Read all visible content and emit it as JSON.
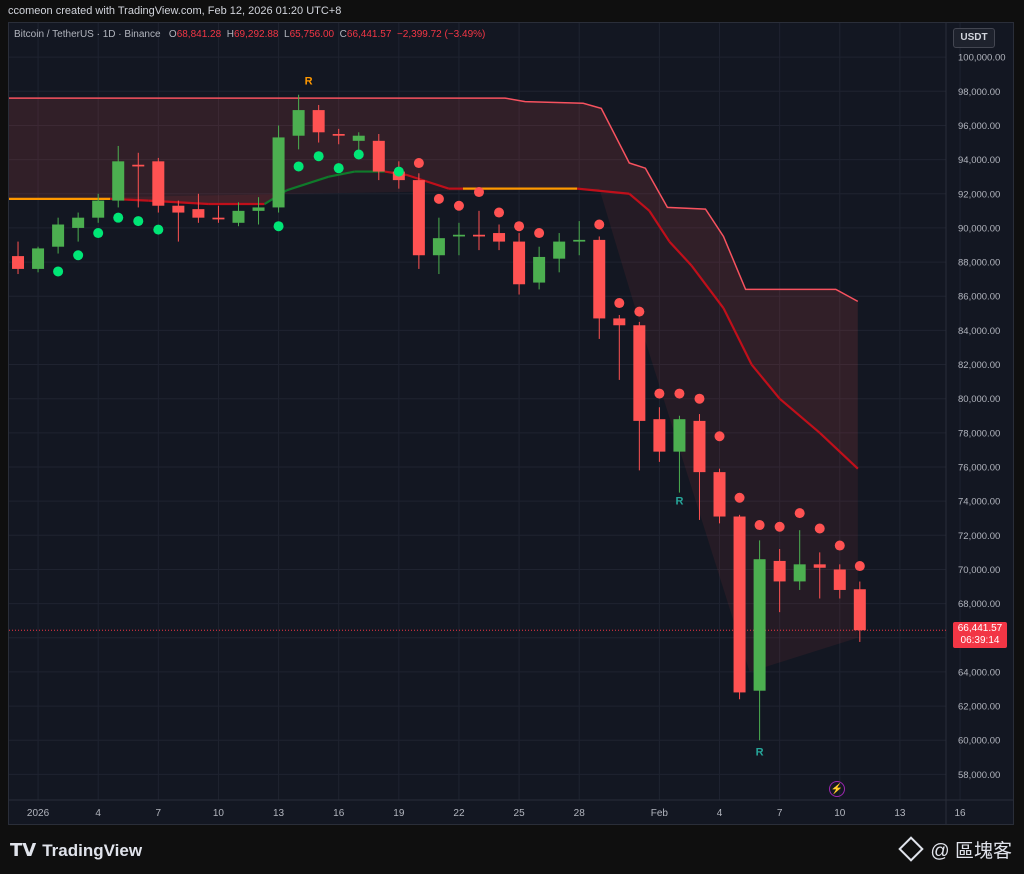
{
  "header": {
    "caption": "ccomeon created with TradingView.com, Feb 12, 2026 01:20 UTC+8"
  },
  "legend": {
    "symbol": "Bitcoin / TetherUS · 1D · Binance",
    "o_key": "O",
    "open": "68,841.28",
    "h_key": "H",
    "high": "69,292.88",
    "l_key": "L",
    "low": "65,756.00",
    "c_key": "C",
    "close": "66,441.57",
    "change": "−2,399.72 (−3.49%)"
  },
  "currency": "USDT",
  "price_tag": {
    "price": "66,441.57",
    "countdown": "06:39:14"
  },
  "footer": {
    "logo": "TradingView",
    "watermark": "@ 區塊客"
  },
  "icons": {
    "logo": "tradingview-logo-icon",
    "lightning": "lightning-icon",
    "brand": "binance-diamond-icon"
  },
  "colors": {
    "up": "#4caf50",
    "down": "#ff5252",
    "dot_up": "#00e676",
    "dot_down": "#ff5252",
    "band": "#f7525f",
    "mid_down": "#c00f1a",
    "mid_up": "#0f7a2a",
    "mid_flat": "#ff9800",
    "last_price_line": "#f23645",
    "label_r_top": "#ff9800",
    "label_r_bottom": "#26a69a"
  },
  "chart_data": {
    "type": "candlestick",
    "symbol": "Bitcoin / TetherUS",
    "interval": "1D",
    "exchange": "Binance",
    "ylim": [
      56500,
      102000
    ],
    "xlim": [
      -0.45,
      46.3
    ],
    "y_ticks": [
      58000,
      60000,
      62000,
      64000,
      66000,
      68000,
      70000,
      72000,
      74000,
      76000,
      78000,
      80000,
      82000,
      84000,
      86000,
      88000,
      90000,
      92000,
      94000,
      96000,
      98000,
      100000
    ],
    "y_tick_labels": [
      "58,000.00",
      "60,000.00",
      "62,000.00",
      "64,000.00",
      "66,000.00",
      "68,000.00",
      "70,000.00",
      "72,000.00",
      "74,000.00",
      "76,000.00",
      "78,000.00",
      "80,000.00",
      "82,000.00",
      "84,000.00",
      "86,000.00",
      "88,000.00",
      "90,000.00",
      "92,000.00",
      "94,000.00",
      "96,000.00",
      "98,000.00",
      "100,000.00"
    ],
    "x_ticks": [
      {
        "i": 1,
        "label": "2026"
      },
      {
        "i": 4,
        "label": "4"
      },
      {
        "i": 7,
        "label": "7"
      },
      {
        "i": 10,
        "label": "10"
      },
      {
        "i": 13,
        "label": "13"
      },
      {
        "i": 16,
        "label": "16"
      },
      {
        "i": 19,
        "label": "19"
      },
      {
        "i": 22,
        "label": "22"
      },
      {
        "i": 25,
        "label": "25"
      },
      {
        "i": 28,
        "label": "28"
      },
      {
        "i": 32,
        "label": "Feb"
      },
      {
        "i": 35,
        "label": "4"
      },
      {
        "i": 38,
        "label": "7"
      },
      {
        "i": 41,
        "label": "10"
      },
      {
        "i": 44,
        "label": "13"
      },
      {
        "i": 47,
        "label": "16"
      }
    ],
    "candles": [
      {
        "i": 0,
        "o": 88350,
        "h": 89200,
        "l": 87300,
        "c": 87600
      },
      {
        "i": 1,
        "o": 87600,
        "h": 88900,
        "l": 87400,
        "c": 88800
      },
      {
        "i": 2,
        "o": 88900,
        "h": 90600,
        "l": 88500,
        "c": 90200
      },
      {
        "i": 3,
        "o": 90000,
        "h": 90900,
        "l": 89200,
        "c": 90600
      },
      {
        "i": 4,
        "o": 90600,
        "h": 92000,
        "l": 90300,
        "c": 91600
      },
      {
        "i": 5,
        "o": 91600,
        "h": 94800,
        "l": 91200,
        "c": 93900
      },
      {
        "i": 6,
        "o": 93700,
        "h": 94400,
        "l": 91200,
        "c": 93600
      },
      {
        "i": 7,
        "o": 93900,
        "h": 94100,
        "l": 90900,
        "c": 91300
      },
      {
        "i": 8,
        "o": 91300,
        "h": 91600,
        "l": 89200,
        "c": 90900
      },
      {
        "i": 9,
        "o": 91100,
        "h": 92000,
        "l": 90300,
        "c": 90600
      },
      {
        "i": 10,
        "o": 90600,
        "h": 91300,
        "l": 90300,
        "c": 90500
      },
      {
        "i": 11,
        "o": 90300,
        "h": 91500,
        "l": 90100,
        "c": 91000
      },
      {
        "i": 12,
        "o": 91000,
        "h": 91800,
        "l": 90200,
        "c": 91200
      },
      {
        "i": 13,
        "o": 91200,
        "h": 96000,
        "l": 90900,
        "c": 95300
      },
      {
        "i": 14,
        "o": 95400,
        "h": 97800,
        "l": 94600,
        "c": 96900
      },
      {
        "i": 15,
        "o": 96900,
        "h": 97200,
        "l": 95000,
        "c": 95600
      },
      {
        "i": 16,
        "o": 95500,
        "h": 95800,
        "l": 94900,
        "c": 95400
      },
      {
        "i": 17,
        "o": 95100,
        "h": 95600,
        "l": 94300,
        "c": 95400
      },
      {
        "i": 18,
        "o": 95100,
        "h": 95500,
        "l": 92800,
        "c": 93300
      },
      {
        "i": 19,
        "o": 93300,
        "h": 93900,
        "l": 92300,
        "c": 92800
      },
      {
        "i": 20,
        "o": 92800,
        "h": 93200,
        "l": 87600,
        "c": 88400
      },
      {
        "i": 21,
        "o": 88400,
        "h": 90600,
        "l": 87300,
        "c": 89400
      },
      {
        "i": 22,
        "o": 89500,
        "h": 90300,
        "l": 88400,
        "c": 89600
      },
      {
        "i": 23,
        "o": 89600,
        "h": 91000,
        "l": 88700,
        "c": 89500
      },
      {
        "i": 24,
        "o": 89700,
        "h": 90200,
        "l": 88700,
        "c": 89200
      },
      {
        "i": 25,
        "o": 89200,
        "h": 89700,
        "l": 86100,
        "c": 86700
      },
      {
        "i": 26,
        "o": 86800,
        "h": 88900,
        "l": 86400,
        "c": 88300
      },
      {
        "i": 27,
        "o": 88200,
        "h": 89700,
        "l": 87400,
        "c": 89200
      },
      {
        "i": 28,
        "o": 89200,
        "h": 90400,
        "l": 88400,
        "c": 89300
      },
      {
        "i": 29,
        "o": 89300,
        "h": 89500,
        "l": 83500,
        "c": 84700
      },
      {
        "i": 30,
        "o": 84700,
        "h": 84900,
        "l": 81100,
        "c": 84300
      },
      {
        "i": 31,
        "o": 84300,
        "h": 84500,
        "l": 75800,
        "c": 78700
      },
      {
        "i": 32,
        "o": 78800,
        "h": 79500,
        "l": 76300,
        "c": 76900
      },
      {
        "i": 33,
        "o": 76900,
        "h": 79000,
        "l": 74500,
        "c": 78800
      },
      {
        "i": 34,
        "o": 78700,
        "h": 79100,
        "l": 72900,
        "c": 75700
      },
      {
        "i": 35,
        "o": 75700,
        "h": 75900,
        "l": 72700,
        "c": 73100
      },
      {
        "i": 36,
        "o": 73100,
        "h": 73200,
        "l": 62400,
        "c": 62800
      },
      {
        "i": 37,
        "o": 62900,
        "h": 71700,
        "l": 60000,
        "c": 70600
      },
      {
        "i": 38,
        "o": 70500,
        "h": 71200,
        "l": 67500,
        "c": 69300
      },
      {
        "i": 39,
        "o": 69300,
        "h": 72300,
        "l": 68800,
        "c": 70300
      },
      {
        "i": 40,
        "o": 70300,
        "h": 71000,
        "l": 68300,
        "c": 70100
      },
      {
        "i": 41,
        "o": 70000,
        "h": 70300,
        "l": 68300,
        "c": 68800
      },
      {
        "i": 42,
        "o": 68841.28,
        "h": 69292.88,
        "l": 65756,
        "c": 66441.57
      }
    ],
    "sar_dots": [
      {
        "i": 2,
        "v": 87450,
        "dir": "up"
      },
      {
        "i": 3,
        "v": 88400,
        "dir": "up"
      },
      {
        "i": 4,
        "v": 89700,
        "dir": "up"
      },
      {
        "i": 5,
        "v": 90600,
        "dir": "up"
      },
      {
        "i": 6,
        "v": 90400,
        "dir": "up"
      },
      {
        "i": 7,
        "v": 89900,
        "dir": "up"
      },
      {
        "i": 13,
        "v": 90100,
        "dir": "up"
      },
      {
        "i": 14,
        "v": 93600,
        "dir": "up"
      },
      {
        "i": 15,
        "v": 94200,
        "dir": "up"
      },
      {
        "i": 16,
        "v": 93500,
        "dir": "up"
      },
      {
        "i": 17,
        "v": 94300,
        "dir": "up"
      },
      {
        "i": 19,
        "v": 93300,
        "dir": "up"
      },
      {
        "i": 20,
        "v": 93800,
        "dir": "down"
      },
      {
        "i": 21,
        "v": 91700,
        "dir": "down"
      },
      {
        "i": 22,
        "v": 91300,
        "dir": "down"
      },
      {
        "i": 23,
        "v": 92100,
        "dir": "down"
      },
      {
        "i": 24,
        "v": 90900,
        "dir": "down"
      },
      {
        "i": 25,
        "v": 90100,
        "dir": "down"
      },
      {
        "i": 26,
        "v": 89700,
        "dir": "down"
      },
      {
        "i": 29,
        "v": 90200,
        "dir": "down"
      },
      {
        "i": 30,
        "v": 85600,
        "dir": "down"
      },
      {
        "i": 31,
        "v": 85100,
        "dir": "down"
      },
      {
        "i": 32,
        "v": 80300,
        "dir": "down"
      },
      {
        "i": 33,
        "v": 80300,
        "dir": "down"
      },
      {
        "i": 34,
        "v": 80000,
        "dir": "down"
      },
      {
        "i": 35,
        "v": 77800,
        "dir": "down"
      },
      {
        "i": 36,
        "v": 74200,
        "dir": "down"
      },
      {
        "i": 37,
        "v": 72600,
        "dir": "down"
      },
      {
        "i": 38,
        "v": 72500,
        "dir": "down"
      },
      {
        "i": 39,
        "v": 73300,
        "dir": "down"
      },
      {
        "i": 40,
        "v": 72400,
        "dir": "down"
      },
      {
        "i": 41,
        "v": 71400,
        "dir": "down"
      },
      {
        "i": 42,
        "v": 70200,
        "dir": "down"
      }
    ],
    "upper_band": [
      {
        "i": -0.5,
        "v": 97600
      },
      {
        "i": 24.3,
        "v": 97600
      },
      {
        "i": 25.3,
        "v": 97400
      },
      {
        "i": 28.2,
        "v": 97300
      },
      {
        "i": 29.1,
        "v": 97000
      },
      {
        "i": 30.5,
        "v": 93800
      },
      {
        "i": 31.3,
        "v": 93500
      },
      {
        "i": 32.4,
        "v": 91200
      },
      {
        "i": 34.3,
        "v": 91100
      },
      {
        "i": 35.2,
        "v": 89500
      },
      {
        "i": 36.3,
        "v": 86400
      },
      {
        "i": 40.8,
        "v": 86400
      },
      {
        "i": 41.9,
        "v": 85700
      }
    ],
    "mid_line": [
      {
        "i": -0.5,
        "v": 91700,
        "dir": "flat"
      },
      {
        "i": 4.6,
        "v": 91700,
        "dir": "flat"
      },
      {
        "i": 6.5,
        "v": 91600,
        "dir": "down"
      },
      {
        "i": 9.5,
        "v": 91400,
        "dir": "down"
      },
      {
        "i": 12.3,
        "v": 91400,
        "dir": "down"
      },
      {
        "i": 13.4,
        "v": 92200,
        "dir": "up"
      },
      {
        "i": 15.5,
        "v": 93000,
        "dir": "up"
      },
      {
        "i": 16.8,
        "v": 93300,
        "dir": "up"
      },
      {
        "i": 18.3,
        "v": 93300,
        "dir": "up"
      },
      {
        "i": 19.4,
        "v": 93100,
        "dir": "down"
      },
      {
        "i": 21.5,
        "v": 92300,
        "dir": "down"
      },
      {
        "i": 22.2,
        "v": 92300,
        "dir": "down"
      },
      {
        "i": 27.9,
        "v": 92300,
        "dir": "flat"
      },
      {
        "i": 30.5,
        "v": 92000,
        "dir": "down"
      },
      {
        "i": 31.5,
        "v": 91000,
        "dir": "down"
      },
      {
        "i": 32.5,
        "v": 89200,
        "dir": "down"
      },
      {
        "i": 33.6,
        "v": 87800,
        "dir": "down"
      },
      {
        "i": 35.2,
        "v": 85300,
        "dir": "down"
      },
      {
        "i": 36.6,
        "v": 82000,
        "dir": "down"
      },
      {
        "i": 38.0,
        "v": 80000,
        "dir": "down"
      },
      {
        "i": 40.0,
        "v": 78000,
        "dir": "down"
      },
      {
        "i": 41.9,
        "v": 75900,
        "dir": "down"
      }
    ],
    "r_labels": [
      {
        "i": 14.5,
        "v": 98400,
        "text": "R",
        "pos": "top"
      },
      {
        "i": 33.0,
        "v": 73800,
        "text": "R",
        "pos": "bottom"
      },
      {
        "i": 37.0,
        "v": 59100,
        "text": "R",
        "pos": "bottom"
      }
    ],
    "last_price": 66441.57
  }
}
